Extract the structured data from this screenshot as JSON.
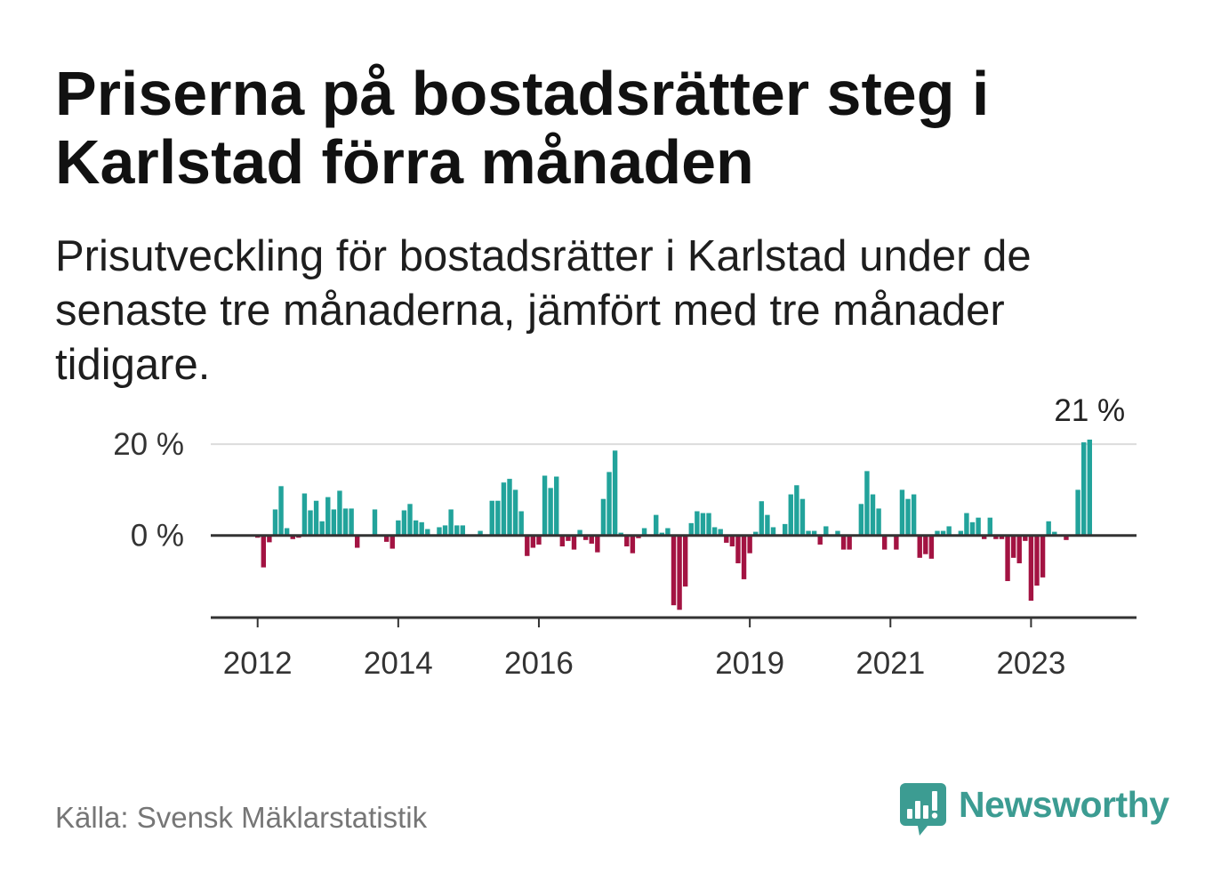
{
  "chart_data": {
    "type": "bar",
    "title": "Priserna på bostadsrätter steg i Karlstad förra månaden",
    "subtitle": "Prisutveckling för bostadsrätter i Karlstad under de senaste tre månaderna, jämfört med tre månader tidigare.",
    "x": [
      "2012-01",
      "2012-02",
      "2012-03",
      "2012-04",
      "2012-05",
      "2012-06",
      "2012-07",
      "2012-08",
      "2012-09",
      "2012-10",
      "2012-11",
      "2012-12",
      "2013-01",
      "2013-02",
      "2013-03",
      "2013-04",
      "2013-05",
      "2013-06",
      "2013-07",
      "2013-08",
      "2013-09",
      "2013-10",
      "2013-11",
      "2013-12",
      "2014-01",
      "2014-02",
      "2014-03",
      "2014-04",
      "2014-05",
      "2014-06",
      "2014-07",
      "2014-08",
      "2014-09",
      "2014-10",
      "2014-11",
      "2014-12",
      "2015-01",
      "2015-02",
      "2015-03",
      "2015-04",
      "2015-05",
      "2015-06",
      "2015-07",
      "2015-08",
      "2015-09",
      "2015-10",
      "2015-11",
      "2015-12",
      "2016-01",
      "2016-02",
      "2016-03",
      "2016-04",
      "2016-05",
      "2016-06",
      "2016-07",
      "2016-08",
      "2016-09",
      "2016-10",
      "2016-11",
      "2016-12",
      "2017-01",
      "2017-02",
      "2017-03",
      "2017-04",
      "2017-05",
      "2017-06",
      "2017-07",
      "2017-08",
      "2017-09",
      "2017-10",
      "2017-11",
      "2017-12",
      "2018-01",
      "2018-02",
      "2018-03",
      "2018-04",
      "2018-05",
      "2018-06",
      "2018-07",
      "2018-08",
      "2018-09",
      "2018-10",
      "2018-11",
      "2018-12",
      "2019-01",
      "2019-02",
      "2019-03",
      "2019-04",
      "2019-05",
      "2019-06",
      "2019-07",
      "2019-08",
      "2019-09",
      "2019-10",
      "2019-11",
      "2019-12",
      "2020-01",
      "2020-02",
      "2020-03",
      "2020-04",
      "2020-05",
      "2020-06",
      "2020-07",
      "2020-08",
      "2020-09",
      "2020-10",
      "2020-11",
      "2020-12",
      "2021-01",
      "2021-02",
      "2021-03",
      "2021-04",
      "2021-05",
      "2021-06",
      "2021-07",
      "2021-08",
      "2021-09",
      "2021-10",
      "2021-11",
      "2021-12",
      "2022-01",
      "2022-02",
      "2022-03",
      "2022-04",
      "2022-05",
      "2022-06",
      "2022-07",
      "2022-08",
      "2022-09",
      "2022-10",
      "2022-11",
      "2022-12",
      "2023-01",
      "2023-02",
      "2023-03",
      "2023-04",
      "2023-05",
      "2023-06",
      "2023-07",
      "2023-08",
      "2023-09",
      "2023-10",
      "2023-11"
    ],
    "values": [
      -0.5,
      -7.0,
      -1.5,
      5.7,
      10.8,
      1.6,
      -0.8,
      -0.5,
      9.2,
      5.5,
      7.6,
      3.1,
      8.4,
      5.7,
      9.8,
      5.9,
      5.9,
      -2.7,
      0,
      0,
      5.7,
      0,
      -1.4,
      -2.9,
      3.3,
      5.5,
      6.9,
      3.3,
      2.9,
      1.4,
      0,
      1.8,
      2.2,
      5.7,
      2.2,
      2.2,
      0,
      0,
      1.0,
      0,
      7.6,
      7.6,
      11.6,
      12.4,
      10.0,
      5.3,
      -4.5,
      -2.7,
      -2.0,
      13.1,
      10.4,
      12.9,
      -2.4,
      -1.2,
      -3.1,
      1.2,
      -1.0,
      -1.8,
      -3.7,
      8.0,
      13.9,
      18.6,
      0.6,
      -2.4,
      -3.9,
      -0.6,
      1.6,
      0,
      4.5,
      0.6,
      1.6,
      -15.3,
      -16.3,
      -11.2,
      2.7,
      5.3,
      4.9,
      4.9,
      1.8,
      1.4,
      -1.6,
      -2.4,
      -6.1,
      -9.6,
      -3.9,
      0.8,
      7.5,
      4.5,
      1.8,
      0,
      2.5,
      9.0,
      11.0,
      8.0,
      1.0,
      1.0,
      -2.0,
      2.0,
      0,
      1.0,
      -3.1,
      -3.1,
      0,
      6.9,
      14.1,
      9.0,
      5.9,
      -3.1,
      0,
      -3.1,
      10.0,
      8.0,
      9.0,
      -4.9,
      -4.1,
      -5.1,
      1.0,
      1.0,
      2.0,
      0,
      1.0,
      4.9,
      2.9,
      3.9,
      -0.8,
      3.9,
      -0.8,
      -0.8,
      -10.0,
      -4.9,
      -6.1,
      -1.2,
      -14.3,
      -11.0,
      -9.2,
      3.1,
      0.8,
      0,
      -1.0,
      0,
      10.0,
      20.4,
      21.0
    ],
    "xlim": [
      "2011-05",
      "2024-07"
    ],
    "ylim": [
      -18,
      21
    ],
    "xticks": [
      {
        "value": "2012-01",
        "label": "2012"
      },
      {
        "value": "2014-01",
        "label": "2014"
      },
      {
        "value": "2016-01",
        "label": "2016"
      },
      {
        "value": "2019-01",
        "label": "2019"
      },
      {
        "value": "2021-01",
        "label": "2021"
      },
      {
        "value": "2023-01",
        "label": "2023"
      }
    ],
    "yticks": [
      {
        "value": 20,
        "label": "20 %"
      },
      {
        "value": 0,
        "label": "0 %"
      }
    ],
    "data_labels": [
      {
        "x": "2023-11",
        "label": "21 %"
      }
    ],
    "grid": true,
    "colors": {
      "positive": "#22a39b",
      "negative": "#a31342",
      "zero_line": "#333333",
      "gridline": "#dcdcdc"
    }
  },
  "source": "Källa: Svensk Mäklarstatistik",
  "logo": {
    "text": "Newsworthy",
    "icon": "bar-chart-speech-bubble-icon",
    "color": "#3c9c92"
  }
}
